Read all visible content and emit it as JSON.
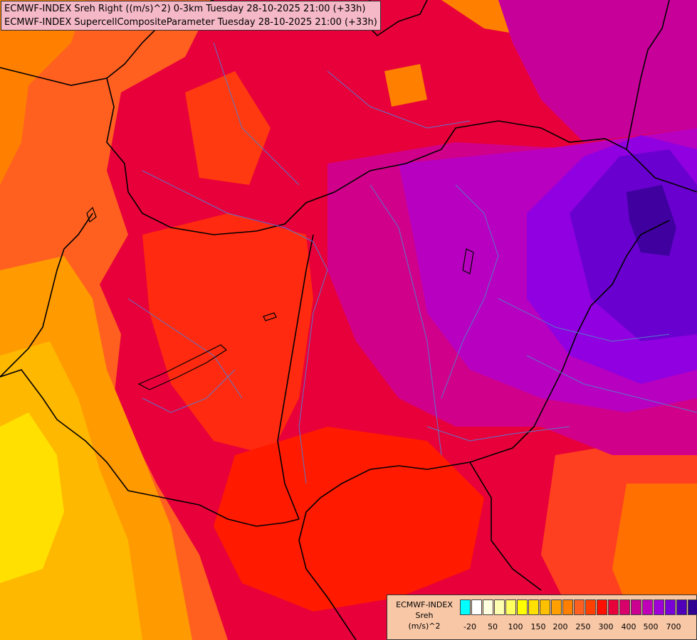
{
  "titles": [
    "ECMWF-INDEX Sreh Right ((m/s)^2) 0-3km Tuesday 28-10-2025 21:00 (+33h)",
    "ECMWF-INDEX SupercellCompositeParameter Tuesday 28-10-2025 21:00 (+33h)"
  ],
  "legend": {
    "title_line1": "ECMWF-INDEX",
    "title_line2": "Sreh",
    "title_line3": "(m/s)^2",
    "colors": [
      "#00ffff",
      "#ffffff",
      "#ffffe0",
      "#ffffb0",
      "#ffff60",
      "#ffff00",
      "#ffe000",
      "#ffc000",
      "#ffa000",
      "#ff8000",
      "#ff6020",
      "#ff4000",
      "#ff1000",
      "#e8003a",
      "#d8006a",
      "#cc0090",
      "#c000b8",
      "#a000d8",
      "#7a00d8",
      "#5000b8",
      "#300090",
      "#100070"
    ],
    "ticks": [
      "-20",
      "50",
      "100",
      "150",
      "200",
      "250",
      "300",
      "400",
      "500",
      "700"
    ]
  },
  "map": {
    "palette": {
      "yellow": "#ffe800",
      "gold": "#ffc800",
      "orange_light": "#ffa800",
      "orange": "#ff8000",
      "orange_red": "#ff5020",
      "red": "#ff1a1a",
      "crimson": "#e8003a",
      "magenta_red": "#d8005a",
      "magenta": "#c8008c",
      "purple": "#b000c8",
      "violet": "#8c00e0",
      "deep_violet": "#6a00d0",
      "indigo": "#4a00a8",
      "border": "#000000",
      "river": "#5a78c8"
    }
  }
}
